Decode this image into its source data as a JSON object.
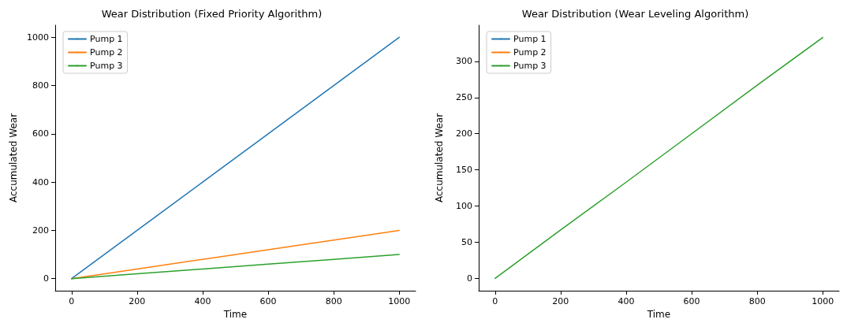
{
  "chart_data": [
    {
      "type": "line",
      "title": "Wear Distribution (Fixed Priority Algorithm)",
      "xlabel": "Time",
      "ylabel": "Accumulated Wear",
      "x": [
        0,
        200,
        400,
        600,
        800,
        1000
      ],
      "series": [
        {
          "name": "Pump 1",
          "color": "#1f77b4",
          "values": [
            0,
            200,
            400,
            600,
            800,
            1000
          ]
        },
        {
          "name": "Pump 2",
          "color": "#ff7f0e",
          "values": [
            0,
            40,
            80,
            120,
            160,
            200
          ]
        },
        {
          "name": "Pump 3",
          "color": "#2ca02c",
          "values": [
            0,
            20,
            40,
            60,
            80,
            100
          ]
        }
      ],
      "xlim": [
        -50,
        1050
      ],
      "xticks": [
        0,
        200,
        400,
        600,
        800,
        1000
      ],
      "ylim": [
        -50,
        1050
      ],
      "yticks": [
        0,
        200,
        400,
        600,
        800,
        1000
      ],
      "grid": false,
      "legend": "top left",
      "marker": "none",
      "line_style": "solid"
    },
    {
      "type": "line",
      "title": "Wear Distribution (Wear Leveling Algorithm)",
      "xlabel": "Time",
      "ylabel": "Accumulated Wear",
      "x": [
        0,
        200,
        400,
        600,
        800,
        1000
      ],
      "series": [
        {
          "name": "Pump 1",
          "color": "#1f77b4",
          "values": [
            null,
            null,
            null,
            null,
            null,
            null
          ]
        },
        {
          "name": "Pump 2",
          "color": "#ff7f0e",
          "values": [
            null,
            null,
            null,
            null,
            null,
            null
          ]
        },
        {
          "name": "Pump 3",
          "color": "#2ca02c",
          "values": [
            0,
            67,
            133,
            200,
            267,
            333
          ]
        }
      ],
      "xlim": [
        -50,
        1050
      ],
      "xticks": [
        0,
        200,
        400,
        600,
        800,
        1000
      ],
      "ylim": [
        -17,
        350
      ],
      "yticks": [
        0,
        50,
        100,
        150,
        200,
        250,
        300
      ],
      "grid": false,
      "legend": "top left",
      "marker": "none",
      "line_style": "solid"
    }
  ]
}
